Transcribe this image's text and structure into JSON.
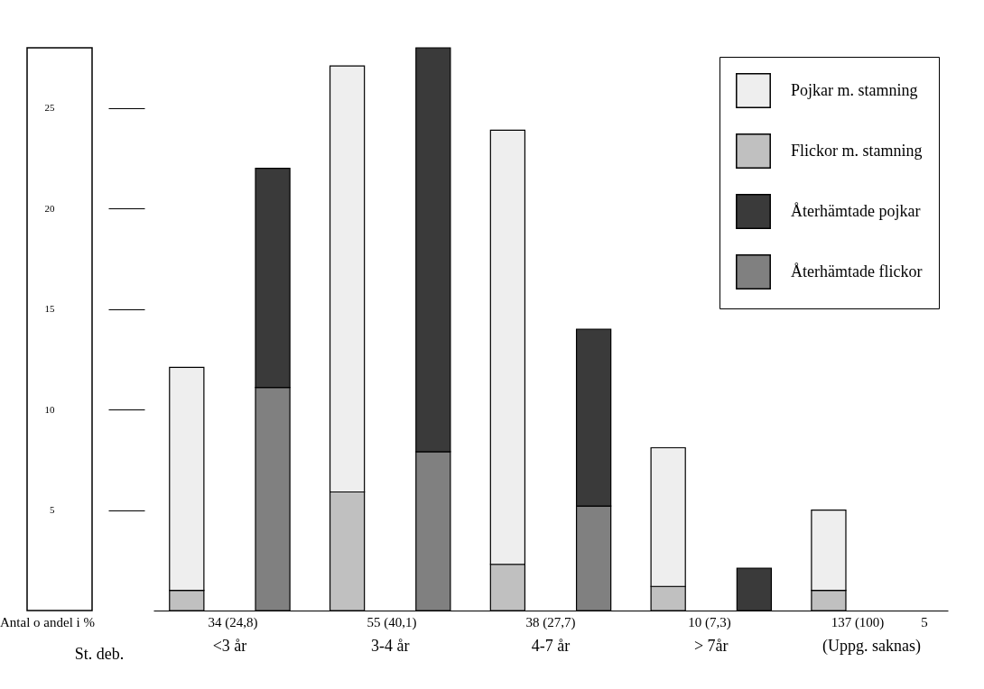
{
  "chart_data": {
    "type": "bar",
    "xlabel": "St. deb.",
    "categories": [
      "<3 år",
      "3-4 år",
      "4-7 år",
      "> 7år",
      "(Uppg. saknas)"
    ],
    "series": [
      {
        "name": "Flickor m. stamning",
        "color": "#c0c0c0",
        "values": [
          1.0,
          5.9,
          2.3,
          1.2,
          1.0
        ],
        "base": [
          0,
          0,
          0,
          0,
          0
        ]
      },
      {
        "name": "Pojkar m. stamning",
        "color": "#eeeeee",
        "values": [
          11.1,
          21.2,
          21.6,
          6.9,
          4.0
        ],
        "base": [
          1.0,
          5.9,
          2.3,
          1.2,
          1.0
        ]
      },
      {
        "name": "Återhämtade flickor",
        "color": "#808080",
        "values": [
          11.1,
          7.9,
          5.2,
          null,
          null
        ],
        "base": [
          0,
          0,
          0,
          null,
          null
        ]
      },
      {
        "name": "Återhämtade pojkar",
        "color": "#3a3a3a",
        "values": [
          10.9,
          20.1,
          8.8,
          2.1,
          null
        ],
        "base": [
          11.1,
          7.9,
          5.2,
          0,
          null
        ]
      }
    ],
    "ylim": [
      0,
      28
    ],
    "yticks": [
      5,
      10,
      15,
      20,
      25
    ],
    "grid": false,
    "legend": "top right",
    "annotations": [
      "Antal o andel i %",
      "34 (24,8)",
      "55 (40,1)",
      "38 (27,7)",
      "10 (7,3)",
      "137 (100)",
      "5"
    ]
  }
}
